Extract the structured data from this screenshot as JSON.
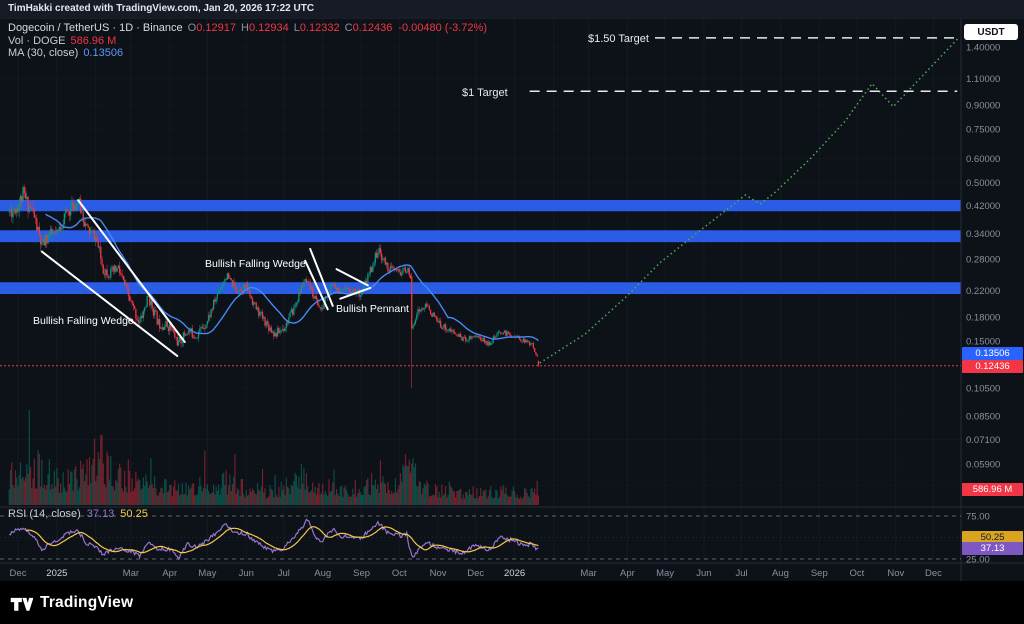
{
  "topbar": {
    "attribution": "TimHakki created with TradingView.com, Jan 20, 2026 17:22 UTC"
  },
  "price_axis": {
    "currency": "USDT"
  },
  "legend": {
    "title": "Dogecoin / TetherUS · 1D · Binance",
    "ohlc": [
      {
        "k": "O",
        "v": "0.12917"
      },
      {
        "k": "H",
        "v": "0.12934"
      },
      {
        "k": "L",
        "v": "0.12332"
      },
      {
        "k": "C",
        "v": "0.12436"
      }
    ],
    "change": "-0.00480 (-3.72%)",
    "vol_label": "Vol · DOGE",
    "vol_value": "586.96 M",
    "ma_label": "MA (30, close)",
    "ma_value": "0.13506",
    "rsi_label": "RSI (14, close)",
    "rsi_value": "37.13",
    "rsi_ma_value": "50.25"
  },
  "badges": {
    "ma": "0.13506",
    "last": "0.12436",
    "volume": "586.96 M",
    "rsi_ma": "50.25",
    "rsi": "37.13"
  },
  "annotations": {
    "wedge1": "Bullish Falling Wedge",
    "wedge2": "Bullish Falling Wedge",
    "pennant": "Bullish Pennant",
    "target_1": "$1 Target",
    "target_150": "$1.50 Target"
  },
  "footer": {
    "brand": "TradingView"
  },
  "colors": {
    "up": "#089981",
    "down": "#f23645",
    "ma": "#4589f5",
    "band": "#2b5ce6",
    "projection": "#4caf50",
    "rsi": "#9575cd",
    "rsi_ma": "#f2c94c",
    "badge_blue": "#2962ff",
    "badge_red": "#f23645",
    "badge_yellow": "#d9a521",
    "badge_purple": "#7e57c2"
  },
  "chart_data": {
    "type": "candlestick",
    "title": "Dogecoin / TetherUS · 1D · Binance",
    "interval": "1D",
    "exchange": "Binance",
    "price_scale": "log",
    "ohlc_last": {
      "o": 0.12917,
      "h": 0.12934,
      "l": 0.12332,
      "c": 0.12436,
      "change": -0.0048,
      "change_pct": -3.72
    },
    "last_price": 0.12436,
    "ma30_value": 0.13506,
    "volume_last": "586.96 M",
    "rsi_value": 37.13,
    "rsi_ma_value": 50.25,
    "day_range": [
      -7,
      415
    ],
    "price_axis_ticks": [
      {
        "label": "1.40000",
        "value": 1.4
      },
      {
        "label": "1.10000",
        "value": 1.1
      },
      {
        "label": "0.90000",
        "value": 0.9
      },
      {
        "label": "0.75000",
        "value": 0.75
      },
      {
        "label": "0.60000",
        "value": 0.6
      },
      {
        "label": "0.50000",
        "value": 0.5
      },
      {
        "label": "0.42000",
        "value": 0.42
      },
      {
        "label": "0.34000",
        "value": 0.34
      },
      {
        "label": "0.28000",
        "value": 0.28
      },
      {
        "label": "0.22000",
        "value": 0.22
      },
      {
        "label": "0.18000",
        "value": 0.18
      },
      {
        "label": "0.15000",
        "value": 0.15
      },
      {
        "label": "0.10500",
        "value": 0.105
      },
      {
        "label": "0.08500",
        "value": 0.085
      },
      {
        "label": "0.07100",
        "value": 0.071
      },
      {
        "label": "0.05900",
        "value": 0.059
      },
      {
        "label": "0.05000",
        "value": 0.05
      }
    ],
    "rsi_axis_ticks": [
      {
        "label": "75.00",
        "value": 75
      },
      {
        "label": "25.00",
        "value": 25
      }
    ],
    "time_axis": [
      {
        "label": "Dec",
        "day": 0,
        "major": false
      },
      {
        "label": "2025",
        "day": 31,
        "major": true
      },
      {
        "label": "Mar",
        "day": 90,
        "major": false
      },
      {
        "label": "Apr",
        "day": 121,
        "major": false
      },
      {
        "label": "May",
        "day": 151,
        "major": false
      },
      {
        "label": "Jun",
        "day": 182,
        "major": false
      },
      {
        "label": "Jul",
        "day": 212,
        "major": false
      },
      {
        "label": "Aug",
        "day": 243,
        "major": false
      },
      {
        "label": "Sep",
        "day": 274,
        "major": false
      },
      {
        "label": "Oct",
        "day": 304,
        "major": false
      },
      {
        "label": "Nov",
        "day": 335,
        "major": false
      },
      {
        "label": "Dec",
        "day": 365,
        "major": false
      },
      {
        "label": "2026",
        "day": 396,
        "major": true
      },
      {
        "label": "Mar",
        "day": 455,
        "major": false
      },
      {
        "label": "Apr",
        "day": 486,
        "major": false
      },
      {
        "label": "May",
        "day": 516,
        "major": false
      },
      {
        "label": "Jun",
        "day": 547,
        "major": false
      },
      {
        "label": "Jul",
        "day": 577,
        "major": false
      },
      {
        "label": "Aug",
        "day": 608,
        "major": false
      },
      {
        "label": "Sep",
        "day": 639,
        "major": false
      },
      {
        "label": "Oct",
        "day": 669,
        "major": false
      },
      {
        "label": "Nov",
        "day": 700,
        "major": false
      },
      {
        "label": "Dec",
        "day": 730,
        "major": false
      }
    ],
    "month_grid_days": [
      0,
      31,
      62,
      90,
      121,
      151,
      182,
      212,
      243,
      274,
      304,
      335,
      365,
      396,
      427,
      455,
      486,
      516,
      547,
      577,
      608,
      639,
      669,
      700,
      730
    ],
    "price_keypoints": [
      [
        -7,
        0.4
      ],
      [
        0,
        0.42
      ],
      [
        4,
        0.455
      ],
      [
        7,
        0.43
      ],
      [
        12,
        0.4
      ],
      [
        19,
        0.305
      ],
      [
        24,
        0.335
      ],
      [
        31,
        0.335
      ],
      [
        38,
        0.395
      ],
      [
        48,
        0.435
      ],
      [
        55,
        0.35
      ],
      [
        62,
        0.33
      ],
      [
        68,
        0.26
      ],
      [
        74,
        0.25
      ],
      [
        80,
        0.26
      ],
      [
        90,
        0.2
      ],
      [
        97,
        0.172
      ],
      [
        104,
        0.21
      ],
      [
        112,
        0.172
      ],
      [
        121,
        0.168
      ],
      [
        128,
        0.147
      ],
      [
        135,
        0.162
      ],
      [
        142,
        0.157
      ],
      [
        151,
        0.175
      ],
      [
        160,
        0.22
      ],
      [
        166,
        0.246
      ],
      [
        174,
        0.222
      ],
      [
        182,
        0.226
      ],
      [
        190,
        0.192
      ],
      [
        198,
        0.172
      ],
      [
        205,
        0.158
      ],
      [
        212,
        0.166
      ],
      [
        220,
        0.192
      ],
      [
        228,
        0.236
      ],
      [
        233,
        0.225
      ],
      [
        242,
        0.188
      ],
      [
        246,
        0.212
      ],
      [
        252,
        0.232
      ],
      [
        258,
        0.216
      ],
      [
        265,
        0.222
      ],
      [
        274,
        0.216
      ],
      [
        282,
        0.262
      ],
      [
        287,
        0.3
      ],
      [
        295,
        0.262
      ],
      [
        304,
        0.252
      ],
      [
        310,
        0.258
      ],
      [
        313,
        0.245
      ],
      [
        314,
        0.165
      ],
      [
        318,
        0.186
      ],
      [
        326,
        0.196
      ],
      [
        335,
        0.172
      ],
      [
        345,
        0.162
      ],
      [
        356,
        0.152
      ],
      [
        365,
        0.157
      ],
      [
        375,
        0.147
      ],
      [
        385,
        0.161
      ],
      [
        396,
        0.156
      ],
      [
        404,
        0.15
      ],
      [
        410,
        0.146
      ],
      [
        414,
        0.134
      ],
      [
        415,
        0.1244
      ]
    ],
    "volatility_keypoints": [
      [
        -7,
        0.065
      ],
      [
        15,
        0.06
      ],
      [
        31,
        0.05
      ],
      [
        62,
        0.05
      ],
      [
        90,
        0.045
      ],
      [
        121,
        0.042
      ],
      [
        151,
        0.038
      ],
      [
        182,
        0.034
      ],
      [
        212,
        0.036
      ],
      [
        243,
        0.03
      ],
      [
        274,
        0.034
      ],
      [
        304,
        0.032
      ],
      [
        316,
        0.028
      ],
      [
        335,
        0.026
      ],
      [
        365,
        0.022
      ],
      [
        396,
        0.018
      ],
      [
        412,
        0.014
      ]
    ],
    "volume_keypoints": [
      [
        -7,
        0.5
      ],
      [
        0,
        0.55
      ],
      [
        6,
        0.75
      ],
      [
        12,
        0.55
      ],
      [
        19,
        0.6
      ],
      [
        31,
        0.4
      ],
      [
        40,
        0.45
      ],
      [
        48,
        0.5
      ],
      [
        58,
        0.55
      ],
      [
        64,
        0.9
      ],
      [
        70,
        0.6
      ],
      [
        80,
        0.45
      ],
      [
        90,
        0.38
      ],
      [
        104,
        0.35
      ],
      [
        121,
        0.3
      ],
      [
        135,
        0.32
      ],
      [
        151,
        0.3
      ],
      [
        166,
        0.38
      ],
      [
        182,
        0.26
      ],
      [
        198,
        0.24
      ],
      [
        212,
        0.28
      ],
      [
        225,
        0.5
      ],
      [
        232,
        0.38
      ],
      [
        243,
        0.3
      ],
      [
        258,
        0.26
      ],
      [
        274,
        0.3
      ],
      [
        287,
        0.38
      ],
      [
        295,
        0.3
      ],
      [
        304,
        0.28
      ],
      [
        314,
        0.95
      ],
      [
        318,
        0.45
      ],
      [
        326,
        0.3
      ],
      [
        335,
        0.26
      ],
      [
        350,
        0.22
      ],
      [
        365,
        0.2
      ],
      [
        380,
        0.22
      ],
      [
        396,
        0.2
      ],
      [
        408,
        0.22
      ],
      [
        415,
        0.3
      ]
    ],
    "rsi_keypoints": [
      [
        -7,
        55
      ],
      [
        4,
        62
      ],
      [
        14,
        48
      ],
      [
        19,
        36
      ],
      [
        26,
        44
      ],
      [
        31,
        46
      ],
      [
        40,
        55
      ],
      [
        48,
        58
      ],
      [
        55,
        42
      ],
      [
        62,
        40
      ],
      [
        68,
        30
      ],
      [
        80,
        38
      ],
      [
        90,
        34
      ],
      [
        97,
        29
      ],
      [
        104,
        46
      ],
      [
        112,
        36
      ],
      [
        121,
        36
      ],
      [
        128,
        27
      ],
      [
        135,
        42
      ],
      [
        142,
        39
      ],
      [
        151,
        47
      ],
      [
        160,
        58
      ],
      [
        166,
        66
      ],
      [
        174,
        54
      ],
      [
        182,
        55
      ],
      [
        190,
        44
      ],
      [
        198,
        38
      ],
      [
        205,
        33
      ],
      [
        212,
        38
      ],
      [
        220,
        50
      ],
      [
        228,
        64
      ],
      [
        231,
        72
      ],
      [
        236,
        52
      ],
      [
        242,
        44
      ],
      [
        246,
        52
      ],
      [
        252,
        58
      ],
      [
        258,
        50
      ],
      [
        265,
        52
      ],
      [
        274,
        50
      ],
      [
        282,
        60
      ],
      [
        287,
        68
      ],
      [
        295,
        55
      ],
      [
        304,
        52
      ],
      [
        310,
        54
      ],
      [
        314,
        27
      ],
      [
        318,
        33
      ],
      [
        326,
        45
      ],
      [
        335,
        38
      ],
      [
        345,
        35
      ],
      [
        356,
        32
      ],
      [
        365,
        42
      ],
      [
        375,
        35
      ],
      [
        385,
        50
      ],
      [
        396,
        46
      ],
      [
        404,
        40
      ],
      [
        410,
        43
      ],
      [
        414,
        36
      ],
      [
        415,
        37.13
      ]
    ],
    "candle_overrides": [
      {
        "d": 314,
        "o": 0.245,
        "h": 0.252,
        "l": 0.105,
        "c": 0.165
      },
      {
        "d": 415,
        "o": 0.12917,
        "h": 0.12934,
        "l": 0.12332,
        "c": 0.12436
      }
    ],
    "projection_points": [
      [
        416,
        0.127
      ],
      [
        452,
        0.158
      ],
      [
        484,
        0.208
      ],
      [
        512,
        0.272
      ],
      [
        545,
        0.35
      ],
      [
        580,
        0.455
      ],
      [
        592,
        0.425
      ],
      [
        604,
        0.465
      ],
      [
        632,
        0.6
      ],
      [
        660,
        0.8
      ],
      [
        681,
        1.06
      ],
      [
        698,
        0.89
      ],
      [
        750,
        1.5
      ]
    ],
    "target_lines": [
      {
        "label": "$1 Target",
        "price": 1.0,
        "d1": 408,
        "d2": 749
      },
      {
        "label": "$1.50 Target",
        "price": 1.5,
        "d1": 508,
        "d2": 749
      }
    ],
    "resistance_bands": [
      {
        "top": 0.438,
        "bottom": 0.402
      },
      {
        "top": 0.348,
        "bottom": 0.318
      },
      {
        "top": 0.2345,
        "bottom": 0.2145
      }
    ],
    "trendlines": [
      {
        "name": "wedge1-upper",
        "d1": 48,
        "p1": 0.437,
        "d2": 133,
        "p2": 0.149
      },
      {
        "name": "wedge1-lower",
        "d1": 19,
        "p1": 0.296,
        "d2": 127,
        "p2": 0.134
      },
      {
        "name": "wedge2-upper",
        "d1": 233,
        "p1": 0.302,
        "d2": 251,
        "p2": 0.196
      },
      {
        "name": "wedge2-lower",
        "d1": 229,
        "p1": 0.276,
        "d2": 247,
        "p2": 0.191
      },
      {
        "name": "pennant-upper",
        "d1": 254,
        "p1": 0.259,
        "d2": 279,
        "p2": 0.229
      },
      {
        "name": "pennant-lower",
        "d1": 257,
        "p1": 0.207,
        "d2": 281,
        "p2": 0.2245
      }
    ]
  }
}
